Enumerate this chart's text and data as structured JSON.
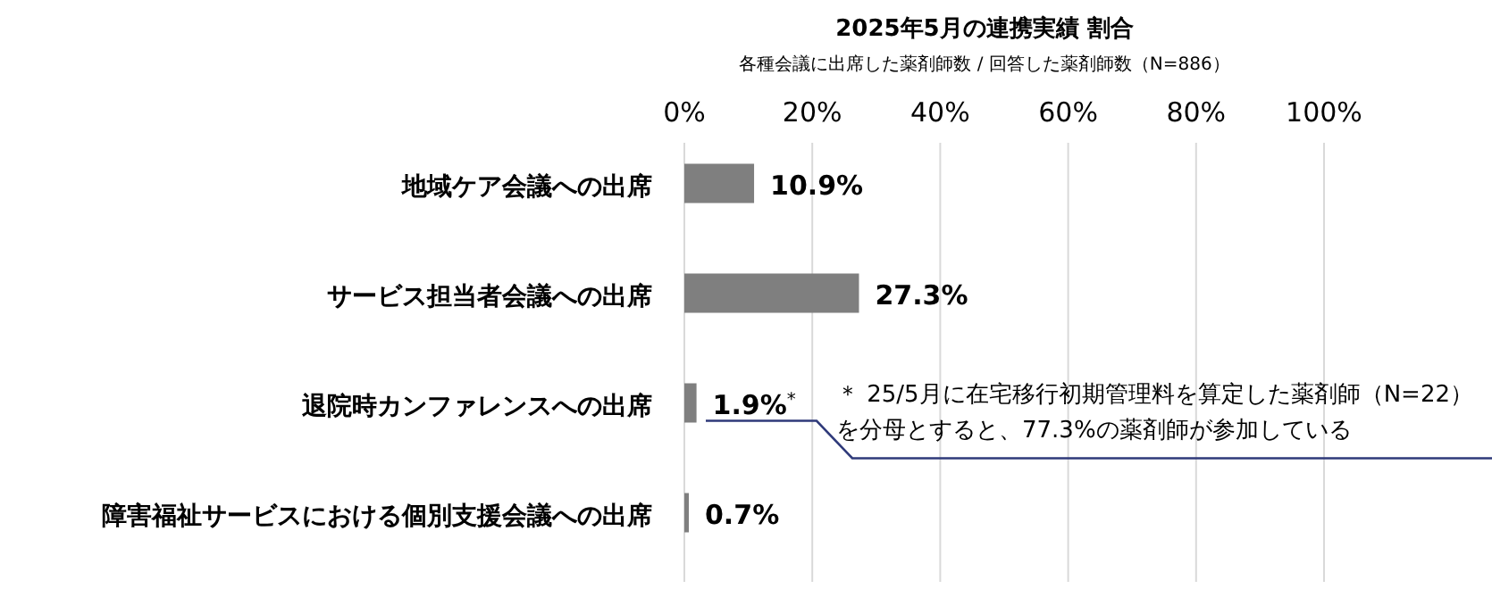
{
  "chart_data": {
    "type": "bar",
    "orientation": "horizontal",
    "title": "2025年5月の連携実績 割合",
    "subtitle": "各種会議に出席した薬剤師数 / 回答した薬剤師数（N=886）",
    "categories": [
      "地域ケア会議への出席",
      "サービス担当者会議への出席",
      "退院時カンファレンスへの出席",
      "障害福祉サービスにおける個別支援会議への出席"
    ],
    "values": [
      10.9,
      27.3,
      1.9,
      0.7
    ],
    "color": "#7f7f7f",
    "value_labels": [
      "10.9%",
      "27.3%",
      "1.9%$^{*}$",
      "0.7%"
    ],
    "xlim": [
      0,
      100
    ],
    "xticks": [
      {
        "value": 0,
        "label": "0%"
      },
      {
        "value": 20,
        "label": "20%"
      },
      {
        "value": 40,
        "label": "40%"
      },
      {
        "value": 60,
        "label": "60%"
      },
      {
        "value": 80,
        "label": "80%"
      },
      {
        "value": 100,
        "label": "100%"
      }
    ],
    "grid": "x",
    "annotations": [
      "＊ 25/5月に在宅移行初期管理料を算定した薬剤師（N=22）を分母とすると、77.3%の薬剤師が参加している"
    ]
  }
}
